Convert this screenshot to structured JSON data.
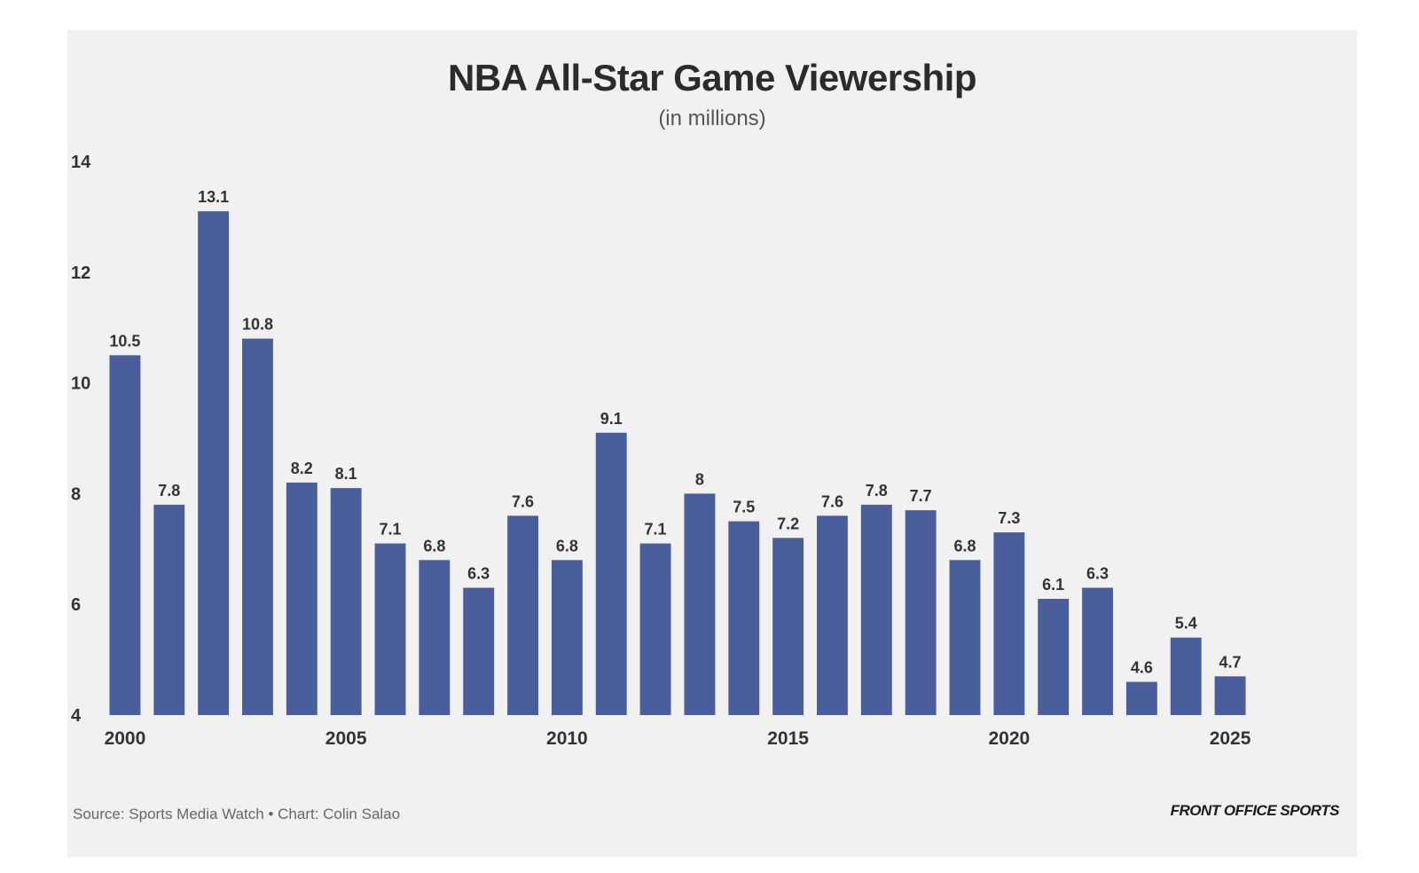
{
  "chart_data": {
    "type": "bar",
    "title": "NBA All-Star Game Viewership",
    "subtitle": "(in millions)",
    "xlabel": "",
    "ylabel": "",
    "categories": [
      "2000",
      "2001",
      "2002",
      "2003",
      "2004",
      "2005",
      "2006",
      "2007",
      "2008",
      "2009",
      "2010",
      "2011",
      "2012",
      "2013",
      "2014",
      "2015",
      "2016",
      "2017",
      "2018",
      "2019",
      "2020",
      "2021",
      "2022",
      "2023",
      "2024",
      "2025"
    ],
    "values": [
      10.5,
      7.8,
      13.1,
      10.8,
      8.2,
      8.1,
      7.1,
      6.8,
      6.3,
      7.6,
      6.8,
      9.1,
      7.1,
      8,
      7.5,
      7.2,
      7.6,
      7.8,
      7.7,
      6.8,
      7.3,
      6.1,
      6.3,
      4.6,
      5.4,
      4.7
    ],
    "value_labels": [
      "10.5",
      "7.8",
      "13.1",
      "10.8",
      "8.2",
      "8.1",
      "7.1",
      "6.8",
      "6.3",
      "7.6",
      "6.8",
      "9.1",
      "7.1",
      "8",
      "7.5",
      "7.2",
      "7.6",
      "7.8",
      "7.7",
      "6.8",
      "7.3",
      "6.1",
      "6.3",
      "4.6",
      "5.4",
      "4.7"
    ],
    "ylim": [
      4,
      14
    ],
    "y_ticks": [
      "4",
      "6",
      "8",
      "10",
      "12",
      "14"
    ],
    "x_tick_labels": [
      "2000",
      "2005",
      "2010",
      "2015",
      "2020",
      "2025"
    ],
    "grid": false,
    "legend": "none",
    "bar_color": "#4a5e9b",
    "background_color": "#f1f1f1"
  },
  "footer": {
    "source": "Source: Sports Media Watch • Chart: Colin Salao",
    "brand": "FRONT OFFICE SPORTS"
  }
}
